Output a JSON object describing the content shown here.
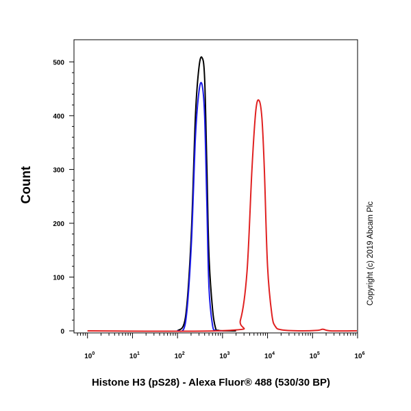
{
  "chart_data": {
    "type": "line",
    "title": "",
    "xlabel": "Histone H3 (pS28) - Alexa Fluor® 488 (530/30 BP)",
    "ylabel": "Count",
    "xscale": "log",
    "xlim_log10": [
      -0.3,
      6.0
    ],
    "ylim": [
      0,
      545
    ],
    "x_ticks": [
      {
        "base": "10",
        "exp": "0",
        "log10": 0
      },
      {
        "base": "10",
        "exp": "1",
        "log10": 1
      },
      {
        "base": "10",
        "exp": "2",
        "log10": 2
      },
      {
        "base": "10",
        "exp": "3",
        "log10": 3
      },
      {
        "base": "10",
        "exp": "4",
        "log10": 4
      },
      {
        "base": "10",
        "exp": "5",
        "log10": 5
      },
      {
        "base": "10",
        "exp": "6",
        "log10": 6
      }
    ],
    "y_ticks": [
      0,
      100,
      200,
      300,
      400,
      500
    ],
    "series": [
      {
        "color": "#000000",
        "x": [
          100,
          150,
          200,
          250,
          300,
          350,
          400,
          450,
          500,
          600,
          700,
          800,
          1000,
          2000
        ],
        "y": [
          0,
          25,
          170,
          400,
          490,
          508,
          470,
          300,
          140,
          40,
          5,
          1,
          0,
          0
        ]
      },
      {
        "color": "#1a1ae6",
        "x": [
          100,
          150,
          200,
          250,
          300,
          350,
          400,
          450,
          500,
          600,
          700,
          800,
          1000
        ],
        "y": [
          0,
          15,
          150,
          360,
          445,
          458,
          400,
          230,
          80,
          10,
          1,
          0,
          0
        ]
      },
      {
        "color": "#e02020",
        "x": [
          1,
          1500,
          2500,
          3500,
          4500,
          5500,
          6500,
          7500,
          8500,
          10000,
          12500,
          15000,
          20000,
          50000,
          130000,
          170000,
          250000,
          1000000
        ],
        "y": [
          0,
          1,
          20,
          110,
          300,
          410,
          428,
          395,
          300,
          120,
          30,
          8,
          2,
          0,
          1,
          3,
          0,
          0
        ]
      }
    ]
  },
  "watermark": "Copyright (c) 2019 Abcam Plc"
}
